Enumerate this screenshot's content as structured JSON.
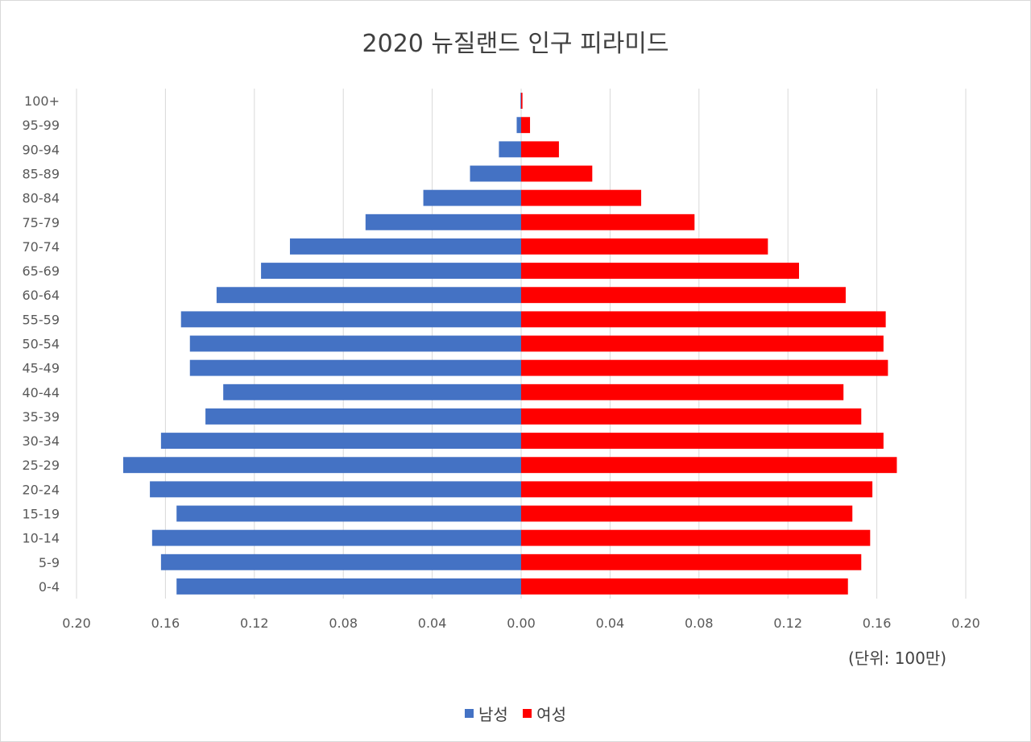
{
  "chart_data": {
    "type": "bar",
    "orientation": "horizontal-diverging",
    "title": "2020 뉴질랜드 인구 피라미드",
    "unit_note": "(단위: 100만)",
    "categories": [
      "0-4",
      "5-9",
      "10-14",
      "15-19",
      "20-24",
      "25-29",
      "30-34",
      "35-39",
      "40-44",
      "45-49",
      "50-54",
      "55-59",
      "60-64",
      "65-69",
      "70-74",
      "75-79",
      "80-84",
      "85-89",
      "90-94",
      "95-99",
      "100+"
    ],
    "series": [
      {
        "name": "남성",
        "color": "#4472C4",
        "values": [
          0.155,
          0.162,
          0.166,
          0.155,
          0.167,
          0.179,
          0.162,
          0.142,
          0.134,
          0.149,
          0.149,
          0.153,
          0.137,
          0.117,
          0.104,
          0.07,
          0.044,
          0.023,
          0.01,
          0.002,
          0.0003
        ]
      },
      {
        "name": "여성",
        "color": "#FF0000",
        "values": [
          0.147,
          0.153,
          0.157,
          0.149,
          0.158,
          0.169,
          0.163,
          0.153,
          0.145,
          0.165,
          0.163,
          0.164,
          0.146,
          0.125,
          0.111,
          0.078,
          0.054,
          0.032,
          0.017,
          0.004,
          0.0006
        ]
      }
    ],
    "xlim": [
      -0.2,
      0.2
    ],
    "x_ticks": [
      "0.20",
      "0.16",
      "0.12",
      "0.08",
      "0.04",
      "0.00",
      "0.04",
      "0.08",
      "0.12",
      "0.16",
      "0.20"
    ],
    "grid": "vertical",
    "legend_position": "bottom"
  }
}
